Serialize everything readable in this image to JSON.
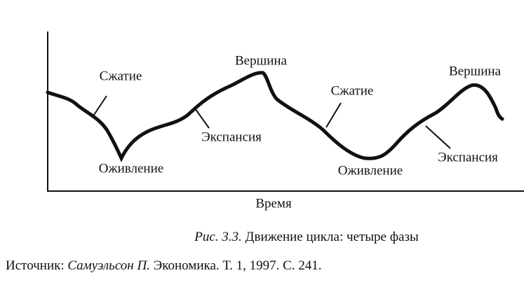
{
  "diagram": {
    "labels": [
      "Сжатие",
      "Оживление",
      "Экспансия",
      "Вершина",
      "Сжатие",
      "Оживление",
      "Вершина",
      "Экспансия"
    ],
    "x_axis_label": "Время"
  },
  "caption": {
    "number": "Рис. 3.3.",
    "text": "Движение цикла: четыре фазы"
  },
  "source": {
    "prefix": "Источник:",
    "author": "Самуэльсон П.",
    "rest": "Экономика. Т. 1, 1997. С. 241."
  }
}
